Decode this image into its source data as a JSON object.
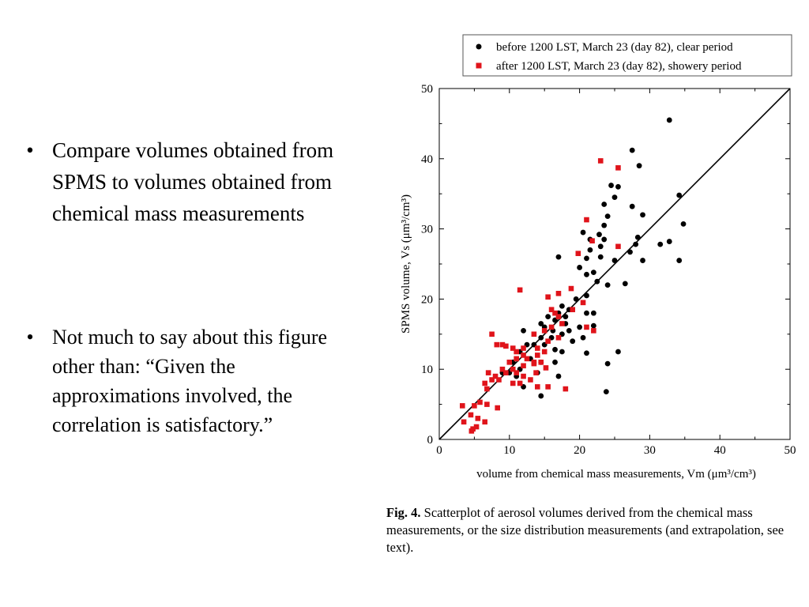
{
  "bullets": [
    "Compare volumes obtained from SPMS to volumes obtained from chemical mass measurements",
    "Not much to say about this figure other than: “Given the approximations involved, the correlation is satisfactory.”"
  ],
  "caption": {
    "label": "Fig. 4.",
    "text": "Scatterplot of aerosol volumes derived from the chemical mass measurements, or the size distribution measurements (and extrapolation, see text)."
  },
  "colors": {
    "before": "#000000",
    "after": "#e0141b"
  },
  "chart_data": {
    "type": "scatter",
    "xlabel": "volume from chemical mass measurements, Vm (μm³/cm³)",
    "ylabel": "SPMS volume, Vs (μm³/cm³)",
    "xlim": [
      0,
      50
    ],
    "ylim": [
      0,
      50
    ],
    "xticks": [
      0,
      10,
      20,
      30,
      40,
      50
    ],
    "yticks": [
      0,
      10,
      20,
      30,
      40,
      50
    ],
    "grid": false,
    "legend_position": "top",
    "reference_line": {
      "x": [
        0,
        50
      ],
      "y": [
        0,
        50
      ]
    },
    "series": [
      {
        "name": "before 1200 LST, March 23 (day 82), clear period",
        "marker": "circle",
        "points": [
          [
            32.8,
            45.5
          ],
          [
            27.5,
            41.2
          ],
          [
            28.5,
            39
          ],
          [
            24.5,
            36.2
          ],
          [
            25.5,
            36
          ],
          [
            34.2,
            34.8
          ],
          [
            25,
            34.5
          ],
          [
            23.5,
            33.5
          ],
          [
            27.5,
            33.2
          ],
          [
            29,
            32
          ],
          [
            24,
            31.8
          ],
          [
            34.8,
            30.7
          ],
          [
            23.5,
            30.5
          ],
          [
            22.8,
            29.2
          ],
          [
            20.5,
            29.5
          ],
          [
            21.5,
            28.5
          ],
          [
            23.5,
            28.5
          ],
          [
            28.3,
            28.8
          ],
          [
            32.8,
            28.2
          ],
          [
            31.5,
            27.8
          ],
          [
            28,
            27.8
          ],
          [
            23,
            27.5
          ],
          [
            21.5,
            27
          ],
          [
            27.2,
            26.7
          ],
          [
            17,
            26
          ],
          [
            21,
            25.8
          ],
          [
            23,
            26
          ],
          [
            25,
            25.5
          ],
          [
            29,
            25.5
          ],
          [
            34.2,
            25.5
          ],
          [
            20,
            24.5
          ],
          [
            22,
            23.8
          ],
          [
            21,
            23.5
          ],
          [
            22.5,
            22.5
          ],
          [
            24,
            22
          ],
          [
            26.5,
            22.2
          ],
          [
            21,
            20.5
          ],
          [
            19.5,
            20
          ],
          [
            17.5,
            19
          ],
          [
            18.5,
            18.5
          ],
          [
            17,
            18
          ],
          [
            18,
            17.5
          ],
          [
            21,
            18
          ],
          [
            22,
            18
          ],
          [
            15.5,
            17.5
          ],
          [
            16.5,
            17
          ],
          [
            18,
            16.5
          ],
          [
            14.5,
            16.5
          ],
          [
            15,
            16
          ],
          [
            20,
            16
          ],
          [
            22,
            16.2
          ],
          [
            16.2,
            15.5
          ],
          [
            18.5,
            15.5
          ],
          [
            17.5,
            15
          ],
          [
            12,
            15.5
          ],
          [
            14.5,
            14.5
          ],
          [
            16,
            14.5
          ],
          [
            13.5,
            13.5
          ],
          [
            15,
            13.5
          ],
          [
            11.5,
            12.5
          ],
          [
            17.5,
            12.5
          ],
          [
            16.5,
            12.8
          ],
          [
            21,
            12.3
          ],
          [
            25.5,
            12.5
          ],
          [
            13,
            11.5
          ],
          [
            10.5,
            11
          ],
          [
            14.5,
            11
          ],
          [
            11.5,
            10
          ],
          [
            16.5,
            11
          ],
          [
            9,
            9.5
          ],
          [
            10,
            9.5
          ],
          [
            11,
            9
          ],
          [
            14,
            9.5
          ],
          [
            17,
            9
          ],
          [
            12,
            7.5
          ],
          [
            14.5,
            6.2
          ],
          [
            23.8,
            6.8
          ],
          [
            24,
            10.8
          ],
          [
            20.5,
            14.5
          ],
          [
            19,
            14
          ],
          [
            12.5,
            13.5
          ]
        ]
      },
      {
        "name": "after 1200 LST, March 23 (day 82), showery period",
        "marker": "square",
        "points": [
          [
            23,
            39.7
          ],
          [
            25.5,
            38.7
          ],
          [
            21,
            31.3
          ],
          [
            21.8,
            28.3
          ],
          [
            25.5,
            27.5
          ],
          [
            19.8,
            26.5
          ],
          [
            11.5,
            21.3
          ],
          [
            17,
            20.8
          ],
          [
            18.8,
            21.5
          ],
          [
            15.5,
            20.3
          ],
          [
            16,
            18.5
          ],
          [
            19,
            18.5
          ],
          [
            20.5,
            19.5
          ],
          [
            16.5,
            18
          ],
          [
            17,
            17.5
          ],
          [
            15,
            15.5
          ],
          [
            16,
            16
          ],
          [
            17.5,
            16.5
          ],
          [
            21,
            16
          ],
          [
            22,
            15.5
          ],
          [
            13.5,
            15
          ],
          [
            15.5,
            14
          ],
          [
            17,
            14.5
          ],
          [
            7.5,
            15
          ],
          [
            9,
            13.5
          ],
          [
            10.5,
            13
          ],
          [
            12,
            13
          ],
          [
            14,
            13
          ],
          [
            9.5,
            13.3
          ],
          [
            8.2,
            13.5
          ],
          [
            11,
            12.5
          ],
          [
            12,
            12
          ],
          [
            14,
            12
          ],
          [
            15,
            12.5
          ],
          [
            11,
            11.5
          ],
          [
            12.5,
            11.5
          ],
          [
            13.5,
            11
          ],
          [
            14.5,
            11
          ],
          [
            10,
            11
          ],
          [
            12,
            10.5
          ],
          [
            13.5,
            10.8
          ],
          [
            15.2,
            10.2
          ],
          [
            9,
            10
          ],
          [
            10.5,
            10
          ],
          [
            11,
            9.5
          ],
          [
            12,
            9
          ],
          [
            13.8,
            9.5
          ],
          [
            7,
            9.5
          ],
          [
            8,
            9
          ],
          [
            9.5,
            9.5
          ],
          [
            7.5,
            8.5
          ],
          [
            8.5,
            8.5
          ],
          [
            6.5,
            8
          ],
          [
            10.5,
            8
          ],
          [
            11.5,
            8
          ],
          [
            13,
            8.5
          ],
          [
            14,
            7.5
          ],
          [
            6.8,
            7.2
          ],
          [
            15.5,
            7.5
          ],
          [
            18,
            7.2
          ],
          [
            8.3,
            4.5
          ],
          [
            6.8,
            5
          ],
          [
            5.8,
            5.3
          ],
          [
            5,
            4.8
          ],
          [
            3.3,
            4.8
          ],
          [
            4.5,
            3.5
          ],
          [
            5.5,
            3
          ],
          [
            6.5,
            2.5
          ],
          [
            3.5,
            2.5
          ],
          [
            4.8,
            1.5
          ],
          [
            4.6,
            1.2
          ],
          [
            5.3,
            1.8
          ]
        ]
      }
    ]
  }
}
